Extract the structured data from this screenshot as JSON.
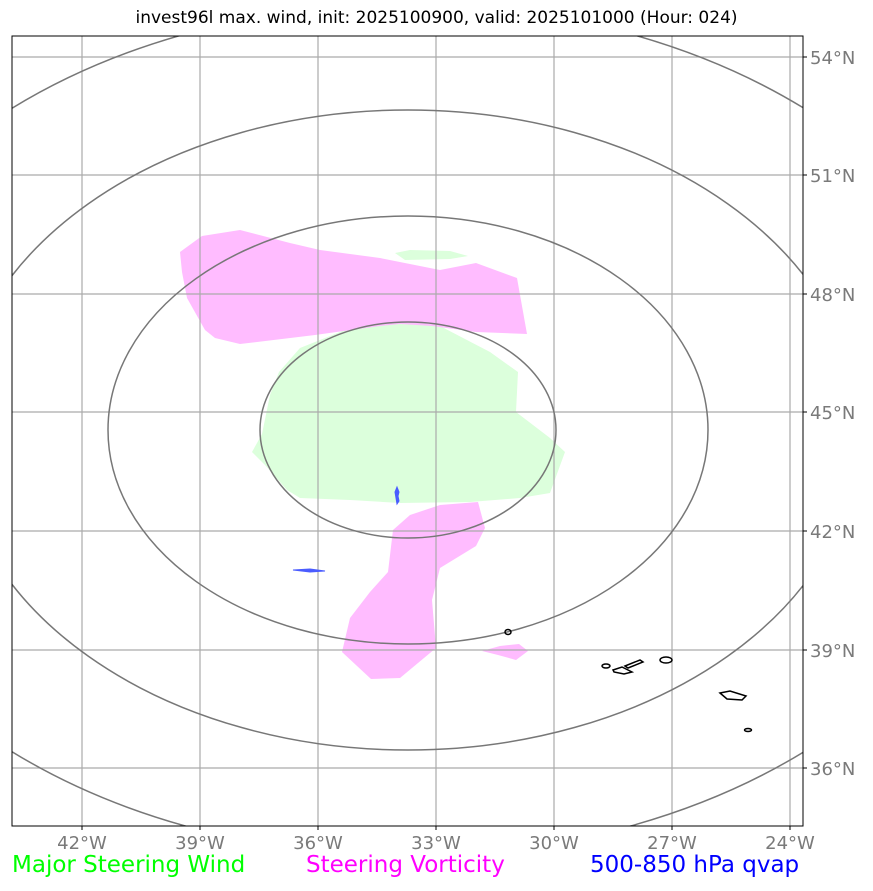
{
  "title": "invest96l max. wind, init: 2025100900, valid: 2025101000 (Hour: 024)",
  "lon_ticks": [
    "42°W",
    "39°W",
    "36°W",
    "33°W",
    "30°W",
    "27°W",
    "24°W"
  ],
  "lat_ticks": [
    "54°N",
    "51°N",
    "48°N",
    "45°N",
    "42°N",
    "39°N",
    "36°N"
  ],
  "legend": [
    {
      "label": "Major Steering Wind",
      "color": "#00ff00"
    },
    {
      "label": "Steering Vorticity",
      "color": "#ff00ff"
    },
    {
      "label": "500-850 hPa qvap",
      "color": "#0000ff"
    }
  ],
  "colors": {
    "wind_fill": "#dcffdc",
    "vorticity_fill": "#ffbcff",
    "qvap": "#4a5cff",
    "range_rings": "#777777",
    "gridlines": "#aaaaaa",
    "coastline": "#000000"
  }
}
